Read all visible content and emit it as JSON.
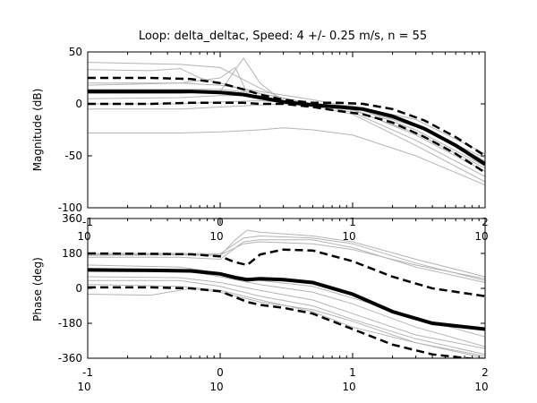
{
  "figure": {
    "title": "Loop: delta_deltac, Speed: 4 +/- 0.25 m/s, n = 55"
  },
  "chart_data": [
    {
      "type": "line",
      "name": "magnitude",
      "ylabel": "Magnitude (dB)",
      "xscale": "log",
      "xlim": [
        0.1,
        100
      ],
      "ylim": [
        -100,
        50
      ],
      "ytick_labels": [
        "50",
        "0",
        "-50",
        "-100"
      ],
      "yticks": [
        50,
        0,
        -50,
        -100
      ],
      "xtick_exponents": [
        "-1",
        "0",
        "1",
        "2"
      ],
      "xtick_base": "10",
      "n_curves": 55,
      "grid": false,
      "mean": {
        "x": [
          0.1,
          0.3,
          0.6,
          1.0,
          1.5,
          2.0,
          3.0,
          5.0,
          8.0,
          12,
          20,
          35,
          60,
          100
        ],
        "y": [
          12,
          12,
          12,
          11,
          9,
          6,
          2,
          -1,
          -3,
          -5,
          -12,
          -24,
          -40,
          -58
        ]
      },
      "upper_bound": {
        "x": [
          0.1,
          0.3,
          0.6,
          1.0,
          1.5,
          2.0,
          3.0,
          5.0,
          8.0,
          12,
          20,
          35,
          60,
          100
        ],
        "y": [
          25,
          25,
          24,
          20,
          14,
          9,
          4,
          1,
          1,
          0,
          -5,
          -16,
          -32,
          -50
        ]
      },
      "lower_bound": {
        "x": [
          0.1,
          0.3,
          0.6,
          1.0,
          1.5,
          2.0,
          3.0,
          5.0,
          8.0,
          12,
          20,
          35,
          60,
          100
        ],
        "y": [
          0,
          0,
          1,
          1,
          1,
          0,
          0,
          -3,
          -7,
          -10,
          -18,
          -32,
          -48,
          -66
        ]
      },
      "sample_curves": [
        {
          "x": [
            0.1,
            0.5,
            1.0,
            2.0,
            3.0,
            5.0,
            10,
            30,
            100
          ],
          "y": [
            40,
            38,
            35,
            15,
            5,
            0,
            -4,
            -20,
            -55
          ]
        },
        {
          "x": [
            0.1,
            0.3,
            0.5,
            0.7,
            1.0,
            2.0,
            5.0,
            10,
            30,
            100
          ],
          "y": [
            33,
            32,
            34,
            25,
            20,
            10,
            0,
            -2,
            -15,
            -48
          ]
        },
        {
          "x": [
            0.1,
            0.5,
            1.0,
            1.3,
            1.6,
            2.0,
            5.0,
            10,
            30,
            100
          ],
          "y": [
            18,
            20,
            25,
            35,
            10,
            5,
            0,
            -3,
            -25,
            -60
          ]
        },
        {
          "x": [
            0.1,
            0.5,
            1.0,
            1.5,
            2.0,
            3.0,
            10,
            30,
            100
          ],
          "y": [
            10,
            10,
            12,
            44,
            20,
            2,
            -2,
            -20,
            -55
          ]
        },
        {
          "x": [
            0.1,
            0.5,
            1.0,
            2.0,
            3.0,
            10,
            30,
            100
          ],
          "y": [
            5,
            6,
            8,
            8,
            3,
            -5,
            -30,
            -65
          ]
        },
        {
          "x": [
            0.1,
            0.5,
            1.0,
            2.0,
            5.0,
            10,
            30,
            100
          ],
          "y": [
            0,
            0,
            2,
            3,
            0,
            -8,
            -35,
            -70
          ]
        },
        {
          "x": [
            0.1,
            0.5,
            1.0,
            2.0,
            3.0,
            5.0,
            10,
            30,
            100
          ],
          "y": [
            -5,
            -5,
            -3,
            -1,
            0,
            -2,
            -10,
            -40,
            -75
          ]
        },
        {
          "x": [
            0.1,
            0.5,
            1.0,
            2.0,
            3.0,
            5.0,
            10,
            30,
            100
          ],
          "y": [
            -28,
            -28,
            -27,
            -25,
            -23,
            -25,
            -30,
            -50,
            -78
          ]
        },
        {
          "x": [
            0.1,
            0.5,
            1.0,
            2.0,
            5.0,
            10,
            30,
            100
          ],
          "y": [
            20,
            20,
            18,
            12,
            4,
            -3,
            -22,
            -52
          ]
        },
        {
          "x": [
            0.1,
            0.5,
            1.0,
            2.0,
            5.0,
            10,
            30,
            100
          ],
          "y": [
            14,
            14,
            14,
            10,
            0,
            -6,
            -28,
            -62
          ]
        }
      ]
    },
    {
      "type": "line",
      "name": "phase",
      "ylabel": "Phase (deg)",
      "xscale": "log",
      "xlim": [
        0.1,
        100
      ],
      "ylim": [
        -360,
        360
      ],
      "ytick_labels": [
        "360",
        "180",
        "0",
        "-180",
        "-360"
      ],
      "yticks": [
        360,
        180,
        0,
        -180,
        -360
      ],
      "xtick_exponents": [
        "-1",
        "0",
        "1",
        "2"
      ],
      "xtick_base": "10",
      "n_curves": 55,
      "grid": false,
      "mean": {
        "x": [
          0.1,
          0.3,
          0.6,
          1.0,
          1.3,
          1.6,
          2.0,
          3.0,
          5.0,
          10,
          20,
          40,
          100
        ],
        "y": [
          95,
          93,
          90,
          75,
          55,
          45,
          50,
          45,
          30,
          -30,
          -120,
          -180,
          -210
        ]
      },
      "upper_bound": {
        "x": [
          0.1,
          0.3,
          0.6,
          1.0,
          1.3,
          1.6,
          2.0,
          3.0,
          5.0,
          10,
          20,
          40,
          100
        ],
        "y": [
          180,
          178,
          176,
          165,
          135,
          120,
          175,
          200,
          195,
          140,
          60,
          0,
          -40
        ]
      },
      "lower_bound": {
        "x": [
          0.1,
          0.3,
          0.6,
          1.0,
          1.3,
          1.6,
          2.0,
          3.0,
          5.0,
          10,
          20,
          40,
          100
        ],
        "y": [
          5,
          5,
          0,
          -15,
          -45,
          -70,
          -85,
          -100,
          -130,
          -210,
          -290,
          -340,
          -370
        ]
      },
      "sample_curves": [
        {
          "x": [
            0.1,
            0.5,
            1.0,
            1.3,
            1.6,
            2.0,
            5.0,
            10,
            30,
            100
          ],
          "y": [
            170,
            172,
            170,
            250,
            300,
            290,
            270,
            240,
            150,
            60
          ]
        },
        {
          "x": [
            0.1,
            0.5,
            1.0,
            1.5,
            2.0,
            5.0,
            10,
            30,
            100
          ],
          "y": [
            180,
            180,
            178,
            260,
            270,
            260,
            230,
            130,
            40
          ]
        },
        {
          "x": [
            0.1,
            0.5,
            1.0,
            1.5,
            2.0,
            5.0,
            10,
            30,
            100
          ],
          "y": [
            160,
            160,
            150,
            240,
            250,
            250,
            210,
            110,
            30
          ]
        },
        {
          "x": [
            0.1,
            0.5,
            1.0,
            2.0,
            5.0,
            10,
            30,
            100
          ],
          "y": [
            100,
            95,
            60,
            20,
            -20,
            -80,
            -200,
            -300
          ]
        },
        {
          "x": [
            0.1,
            0.5,
            1.0,
            2.0,
            5.0,
            10,
            30,
            100
          ],
          "y": [
            40,
            40,
            10,
            -40,
            -90,
            -160,
            -260,
            -340
          ]
        },
        {
          "x": [
            0.1,
            0.5,
            1.0,
            2.0,
            5.0,
            10,
            30,
            100
          ],
          "y": [
            20,
            10,
            -10,
            -60,
            -120,
            -200,
            -280,
            -360
          ]
        },
        {
          "x": [
            0.1,
            0.5,
            1.0,
            2.0,
            5.0,
            10,
            30,
            100
          ],
          "y": [
            60,
            55,
            30,
            -10,
            -60,
            -130,
            -240,
            -310
          ]
        },
        {
          "x": [
            0.1,
            0.3,
            0.6,
            1.0,
            2.0,
            5.0,
            10,
            30,
            100
          ],
          "y": [
            -30,
            -35,
            0,
            -20,
            -70,
            -110,
            -170,
            -280,
            -350
          ]
        },
        {
          "x": [
            0.1,
            0.5,
            1.0,
            2.0,
            5.0,
            10,
            30,
            100
          ],
          "y": [
            120,
            110,
            80,
            40,
            10,
            -50,
            -150,
            -250
          ]
        },
        {
          "x": [
            0.1,
            0.5,
            1.0,
            1.5,
            2.0,
            5.0,
            10,
            30,
            100
          ],
          "y": [
            175,
            175,
            172,
            230,
            240,
            230,
            200,
            120,
            50
          ]
        }
      ]
    }
  ]
}
